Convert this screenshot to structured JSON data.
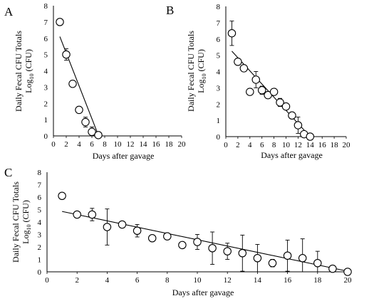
{
  "chart_data": [
    {
      "panel": "A",
      "type": "scatter",
      "xlabel": "Days after gavage",
      "ylabel_line1": "Daily Fecal CFU Totals",
      "ylabel_line2_main": "Log",
      "ylabel_line2_sub": "10",
      "ylabel_line2_rest": " (CFU)",
      "xlim": [
        0,
        20
      ],
      "ylim": [
        0,
        8
      ],
      "xticks": [
        0,
        2,
        4,
        6,
        8,
        10,
        12,
        14,
        16,
        18,
        20
      ],
      "yticks": [
        0,
        1,
        2,
        3,
        4,
        5,
        6,
        7,
        8
      ],
      "points": [
        {
          "x": 1,
          "y": 7.0,
          "err": 0.15
        },
        {
          "x": 2,
          "y": 5.0,
          "err": 0.35
        },
        {
          "x": 3,
          "y": 3.2,
          "err": 0.15
        },
        {
          "x": 4,
          "y": 1.6,
          "err": 0.2
        },
        {
          "x": 5,
          "y": 0.85,
          "err": 0.3
        },
        {
          "x": 6,
          "y": 0.25,
          "err": 0.3
        },
        {
          "x": 7,
          "y": 0.05,
          "err": 0
        }
      ],
      "trendline": {
        "x": [
          1,
          7
        ],
        "y": [
          6.1,
          0.05
        ]
      }
    },
    {
      "panel": "B",
      "type": "scatter",
      "xlabel": "Days after gavage",
      "ylabel_line1": "Daily Fecal CFU Totals",
      "ylabel_line2_main": "Log",
      "ylabel_line2_sub": "10",
      "ylabel_line2_rest": " (CFU)",
      "xlim": [
        0,
        20
      ],
      "ylim": [
        0,
        8
      ],
      "xticks": [
        0,
        2,
        4,
        6,
        8,
        10,
        12,
        14,
        16,
        18,
        20
      ],
      "yticks": [
        0,
        1,
        2,
        3,
        4,
        5,
        6,
        7,
        8
      ],
      "points": [
        {
          "x": 1,
          "y": 6.35,
          "err": 0.75
        },
        {
          "x": 2,
          "y": 4.6,
          "err": 0.2
        },
        {
          "x": 3,
          "y": 4.2,
          "err": 0.1
        },
        {
          "x": 4,
          "y": 2.75,
          "err": 0.2
        },
        {
          "x": 5,
          "y": 3.5,
          "err": 0.5
        },
        {
          "x": 6,
          "y": 2.85,
          "err": 0.25
        },
        {
          "x": 7,
          "y": 2.55,
          "err": 0.15
        },
        {
          "x": 8,
          "y": 2.75,
          "err": 0.2
        },
        {
          "x": 9,
          "y": 2.1,
          "err": 0.25
        },
        {
          "x": 10,
          "y": 1.85,
          "err": 0.15
        },
        {
          "x": 11,
          "y": 1.3,
          "err": 0.2
        },
        {
          "x": 12,
          "y": 0.7,
          "err": 0.5
        },
        {
          "x": 13,
          "y": 0.15,
          "err": 0.15
        },
        {
          "x": 14,
          "y": 0.0,
          "err": 0
        }
      ],
      "trendline": {
        "x": [
          1,
          14
        ],
        "y": [
          5.25,
          0.0
        ]
      }
    },
    {
      "panel": "C",
      "type": "scatter",
      "xlabel": "Days after gavage",
      "ylabel_line1": "Daily Fecal CFU Totals",
      "ylabel_line2_main": "Log",
      "ylabel_line2_sub": "10",
      "ylabel_line2_rest": " (CFU)",
      "xlim": [
        0,
        20
      ],
      "ylim": [
        0,
        8
      ],
      "xticks": [
        0,
        2,
        4,
        6,
        8,
        10,
        12,
        14,
        16,
        18,
        20
      ],
      "yticks": [
        0,
        1,
        2,
        3,
        4,
        5,
        6,
        7,
        8
      ],
      "points": [
        {
          "x": 1,
          "y": 6.1,
          "err": 0.15
        },
        {
          "x": 2,
          "y": 4.6,
          "err": 0.15
        },
        {
          "x": 3,
          "y": 4.6,
          "err": 0.5
        },
        {
          "x": 4,
          "y": 3.6,
          "err": 1.45
        },
        {
          "x": 5,
          "y": 3.8,
          "err": 0.15
        },
        {
          "x": 6,
          "y": 3.3,
          "err": 0.5
        },
        {
          "x": 7,
          "y": 2.7,
          "err": 0.1
        },
        {
          "x": 8,
          "y": 2.85,
          "err": 0.25
        },
        {
          "x": 9,
          "y": 2.15,
          "err": 0.25
        },
        {
          "x": 10,
          "y": 2.4,
          "err": 0.6
        },
        {
          "x": 11,
          "y": 1.9,
          "err": 1.3
        },
        {
          "x": 12,
          "y": 1.65,
          "err": 0.65
        },
        {
          "x": 13,
          "y": 1.5,
          "err": 1.45
        },
        {
          "x": 14,
          "y": 1.1,
          "err": 1.1
        },
        {
          "x": 15,
          "y": 0.7,
          "err": 0.3
        },
        {
          "x": 16,
          "y": 1.3,
          "err": 1.25
        },
        {
          "x": 17,
          "y": 1.1,
          "err": 1.55
        },
        {
          "x": 18,
          "y": 0.7,
          "err": 0.95
        },
        {
          "x": 19,
          "y": 0.25,
          "err": 0.2
        },
        {
          "x": 20,
          "y": 0.0,
          "err": 0
        }
      ],
      "trendline": {
        "x": [
          1,
          20
        ],
        "y": [
          4.85,
          0.05
        ]
      }
    }
  ]
}
